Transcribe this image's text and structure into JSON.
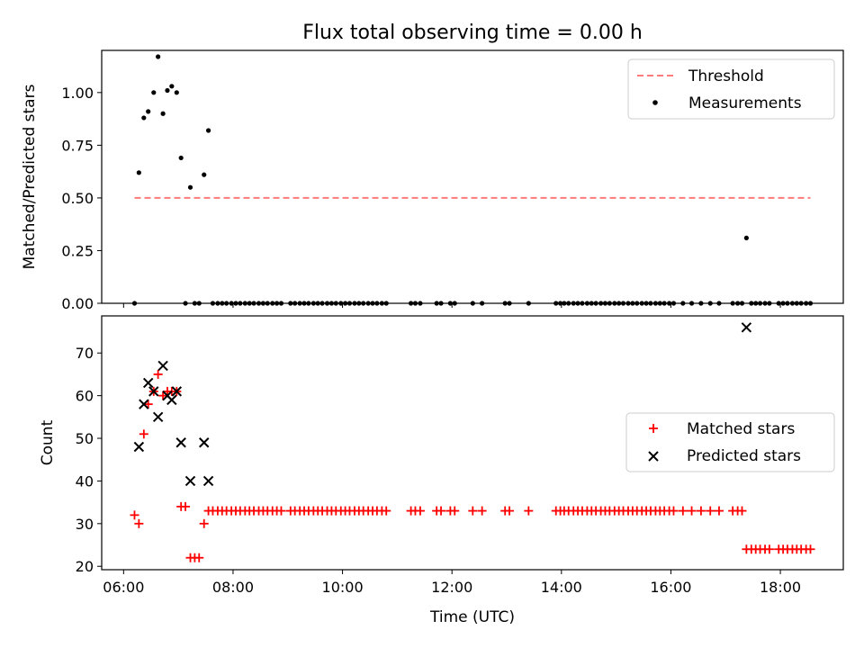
{
  "figure": {
    "title": "Flux total observing time = 0.00 h"
  },
  "chart_data": [
    {
      "type": "scatter",
      "ylabel": "Matched/Predicted stars",
      "xlim": [
        5.6,
        19.15
      ],
      "ylim": [
        0,
        1.2
      ],
      "xticks": [
        6,
        8,
        10,
        12,
        14,
        16,
        18
      ],
      "yticks": [
        0.0,
        0.25,
        0.5,
        0.75,
        1.0
      ],
      "ytick_labels": [
        "0.00",
        "0.25",
        "0.50",
        "0.75",
        "1.00"
      ],
      "legend_position": "upper right",
      "threshold": {
        "name": "Threshold",
        "y": 0.5,
        "x_start": 6.2,
        "x_end": 18.55,
        "color": "#ff7b7b",
        "style": "dashed"
      },
      "series": [
        {
          "name": "Measurements",
          "color": "#000000",
          "marker": "dot",
          "points": [
            [
              6.2,
              0
            ],
            [
              6.28,
              0.62
            ],
            [
              6.37,
              0.88
            ],
            [
              6.45,
              0.91
            ],
            [
              6.55,
              1.0
            ],
            [
              6.63,
              1.17
            ],
            [
              6.72,
              0.9
            ],
            [
              6.8,
              1.01
            ],
            [
              6.88,
              1.03
            ],
            [
              6.97,
              1.0
            ],
            [
              7.05,
              0.69
            ],
            [
              7.13,
              0
            ],
            [
              7.22,
              0.55
            ],
            [
              7.3,
              0
            ],
            [
              7.38,
              0
            ],
            [
              7.47,
              0.61
            ],
            [
              7.55,
              0.82
            ],
            [
              7.63,
              0
            ],
            [
              7.72,
              0
            ],
            [
              7.8,
              0
            ],
            [
              7.88,
              0
            ],
            [
              7.97,
              0
            ],
            [
              8.05,
              0
            ],
            [
              8.13,
              0
            ],
            [
              8.22,
              0
            ],
            [
              8.3,
              0
            ],
            [
              8.38,
              0
            ],
            [
              8.47,
              0
            ],
            [
              8.55,
              0
            ],
            [
              8.63,
              0
            ],
            [
              8.72,
              0
            ],
            [
              8.8,
              0
            ],
            [
              8.88,
              0
            ],
            [
              9.05,
              0
            ],
            [
              9.13,
              0
            ],
            [
              9.22,
              0
            ],
            [
              9.3,
              0
            ],
            [
              9.38,
              0
            ],
            [
              9.47,
              0
            ],
            [
              9.55,
              0
            ],
            [
              9.63,
              0
            ],
            [
              9.72,
              0
            ],
            [
              9.8,
              0
            ],
            [
              9.88,
              0
            ],
            [
              9.97,
              0
            ],
            [
              10.05,
              0
            ],
            [
              10.13,
              0
            ],
            [
              10.22,
              0
            ],
            [
              10.3,
              0
            ],
            [
              10.38,
              0
            ],
            [
              10.47,
              0
            ],
            [
              10.55,
              0
            ],
            [
              10.63,
              0
            ],
            [
              10.72,
              0
            ],
            [
              10.8,
              0
            ],
            [
              11.25,
              0
            ],
            [
              11.33,
              0
            ],
            [
              11.42,
              0
            ],
            [
              11.72,
              0
            ],
            [
              11.8,
              0
            ],
            [
              11.97,
              0
            ],
            [
              12.05,
              0
            ],
            [
              12.38,
              0
            ],
            [
              12.55,
              0
            ],
            [
              12.97,
              0
            ],
            [
              13.05,
              0
            ],
            [
              13.4,
              0
            ],
            [
              13.9,
              0
            ],
            [
              13.98,
              0
            ],
            [
              14.05,
              0
            ],
            [
              14.13,
              0
            ],
            [
              14.22,
              0
            ],
            [
              14.3,
              0
            ],
            [
              14.38,
              0
            ],
            [
              14.47,
              0
            ],
            [
              14.55,
              0
            ],
            [
              14.63,
              0
            ],
            [
              14.72,
              0
            ],
            [
              14.8,
              0
            ],
            [
              14.88,
              0
            ],
            [
              14.97,
              0
            ],
            [
              15.05,
              0
            ],
            [
              15.13,
              0
            ],
            [
              15.22,
              0
            ],
            [
              15.3,
              0
            ],
            [
              15.38,
              0
            ],
            [
              15.47,
              0
            ],
            [
              15.55,
              0
            ],
            [
              15.63,
              0
            ],
            [
              15.72,
              0
            ],
            [
              15.8,
              0
            ],
            [
              15.88,
              0
            ],
            [
              15.97,
              0
            ],
            [
              16.05,
              0
            ],
            [
              16.22,
              0
            ],
            [
              16.38,
              0
            ],
            [
              16.55,
              0
            ],
            [
              16.72,
              0
            ],
            [
              16.88,
              0
            ],
            [
              17.13,
              0
            ],
            [
              17.22,
              0
            ],
            [
              17.3,
              0
            ],
            [
              17.38,
              0.31
            ],
            [
              17.47,
              0
            ],
            [
              17.55,
              0
            ],
            [
              17.63,
              0
            ],
            [
              17.72,
              0
            ],
            [
              17.8,
              0
            ],
            [
              17.97,
              0
            ],
            [
              18.05,
              0
            ],
            [
              18.13,
              0
            ],
            [
              18.22,
              0
            ],
            [
              18.3,
              0
            ],
            [
              18.38,
              0
            ],
            [
              18.47,
              0
            ],
            [
              18.55,
              0
            ]
          ]
        }
      ]
    },
    {
      "type": "scatter",
      "xlabel": "Time (UTC)",
      "ylabel": "Count",
      "xlim": [
        5.6,
        19.15
      ],
      "ylim": [
        19.2,
        78.7
      ],
      "xticks": [
        6,
        8,
        10,
        12,
        14,
        16,
        18
      ],
      "xtick_labels": [
        "06:00",
        "08:00",
        "10:00",
        "12:00",
        "14:00",
        "16:00",
        "18:00"
      ],
      "yticks": [
        20,
        30,
        40,
        50,
        60,
        70
      ],
      "ytick_labels": [
        "20",
        "30",
        "40",
        "50",
        "60",
        "70"
      ],
      "legend_position": "center right",
      "series": [
        {
          "name": "Matched stars",
          "color": "#ff0000",
          "marker": "plus",
          "points": [
            [
              6.2,
              32
            ],
            [
              6.28,
              30
            ],
            [
              6.37,
              51
            ],
            [
              6.45,
              58
            ],
            [
              6.55,
              61
            ],
            [
              6.63,
              65
            ],
            [
              6.72,
              60
            ],
            [
              6.8,
              61
            ],
            [
              6.88,
              61
            ],
            [
              6.97,
              61
            ],
            [
              7.05,
              34
            ],
            [
              7.13,
              34
            ],
            [
              7.22,
              22
            ],
            [
              7.3,
              22
            ],
            [
              7.38,
              22
            ],
            [
              7.47,
              30
            ],
            [
              7.55,
              33
            ],
            [
              7.63,
              33
            ],
            [
              7.72,
              33
            ],
            [
              7.8,
              33
            ],
            [
              7.88,
              33
            ],
            [
              7.97,
              33
            ],
            [
              8.05,
              33
            ],
            [
              8.13,
              33
            ],
            [
              8.22,
              33
            ],
            [
              8.3,
              33
            ],
            [
              8.38,
              33
            ],
            [
              8.47,
              33
            ],
            [
              8.55,
              33
            ],
            [
              8.63,
              33
            ],
            [
              8.72,
              33
            ],
            [
              8.8,
              33
            ],
            [
              8.88,
              33
            ],
            [
              9.05,
              33
            ],
            [
              9.13,
              33
            ],
            [
              9.22,
              33
            ],
            [
              9.3,
              33
            ],
            [
              9.38,
              33
            ],
            [
              9.47,
              33
            ],
            [
              9.55,
              33
            ],
            [
              9.63,
              33
            ],
            [
              9.72,
              33
            ],
            [
              9.8,
              33
            ],
            [
              9.88,
              33
            ],
            [
              9.97,
              33
            ],
            [
              10.05,
              33
            ],
            [
              10.13,
              33
            ],
            [
              10.22,
              33
            ],
            [
              10.3,
              33
            ],
            [
              10.38,
              33
            ],
            [
              10.47,
              33
            ],
            [
              10.55,
              33
            ],
            [
              10.63,
              33
            ],
            [
              10.72,
              33
            ],
            [
              10.8,
              33
            ],
            [
              11.25,
              33
            ],
            [
              11.33,
              33
            ],
            [
              11.42,
              33
            ],
            [
              11.72,
              33
            ],
            [
              11.8,
              33
            ],
            [
              11.97,
              33
            ],
            [
              12.05,
              33
            ],
            [
              12.38,
              33
            ],
            [
              12.55,
              33
            ],
            [
              12.97,
              33
            ],
            [
              13.05,
              33
            ],
            [
              13.4,
              33
            ],
            [
              13.9,
              33
            ],
            [
              13.98,
              33
            ],
            [
              14.05,
              33
            ],
            [
              14.13,
              33
            ],
            [
              14.22,
              33
            ],
            [
              14.3,
              33
            ],
            [
              14.38,
              33
            ],
            [
              14.47,
              33
            ],
            [
              14.55,
              33
            ],
            [
              14.63,
              33
            ],
            [
              14.72,
              33
            ],
            [
              14.8,
              33
            ],
            [
              14.88,
              33
            ],
            [
              14.97,
              33
            ],
            [
              15.05,
              33
            ],
            [
              15.13,
              33
            ],
            [
              15.22,
              33
            ],
            [
              15.3,
              33
            ],
            [
              15.38,
              33
            ],
            [
              15.47,
              33
            ],
            [
              15.55,
              33
            ],
            [
              15.63,
              33
            ],
            [
              15.72,
              33
            ],
            [
              15.8,
              33
            ],
            [
              15.88,
              33
            ],
            [
              15.97,
              33
            ],
            [
              16.05,
              33
            ],
            [
              16.22,
              33
            ],
            [
              16.38,
              33
            ],
            [
              16.55,
              33
            ],
            [
              16.72,
              33
            ],
            [
              16.88,
              33
            ],
            [
              17.13,
              33
            ],
            [
              17.22,
              33
            ],
            [
              17.3,
              33
            ],
            [
              17.38,
              24
            ],
            [
              17.47,
              24
            ],
            [
              17.55,
              24
            ],
            [
              17.63,
              24
            ],
            [
              17.72,
              24
            ],
            [
              17.8,
              24
            ],
            [
              17.97,
              24
            ],
            [
              18.05,
              24
            ],
            [
              18.13,
              24
            ],
            [
              18.22,
              24
            ],
            [
              18.3,
              24
            ],
            [
              18.38,
              24
            ],
            [
              18.47,
              24
            ],
            [
              18.55,
              24
            ]
          ]
        },
        {
          "name": "Predicted stars",
          "color": "#000000",
          "marker": "x",
          "points": [
            [
              6.28,
              48
            ],
            [
              6.37,
              58
            ],
            [
              6.45,
              63
            ],
            [
              6.55,
              61
            ],
            [
              6.63,
              55
            ],
            [
              6.72,
              67
            ],
            [
              6.8,
              60
            ],
            [
              6.88,
              59
            ],
            [
              6.97,
              61
            ],
            [
              7.05,
              49
            ],
            [
              7.22,
              40
            ],
            [
              7.47,
              49
            ],
            [
              7.55,
              40
            ],
            [
              17.38,
              76
            ]
          ]
        }
      ]
    }
  ]
}
